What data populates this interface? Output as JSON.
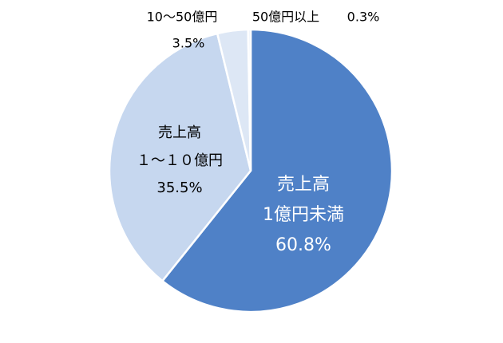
{
  "chart_data": {
    "type": "pie",
    "categories": [
      [
        "売上高",
        "1億円未満"
      ],
      [
        "売上高",
        "１～１０億円"
      ],
      [
        "10～50億円"
      ],
      [
        "50億円以上"
      ]
    ],
    "values": [
      60.8,
      35.5,
      3.5,
      0.3
    ],
    "value_labels": [
      "60.8%",
      "35.5%",
      "3.5%",
      "0.3%"
    ],
    "colors": [
      "#4f81c7",
      "#c6d7ef",
      "#dde7f5",
      "#eef3fa"
    ]
  }
}
